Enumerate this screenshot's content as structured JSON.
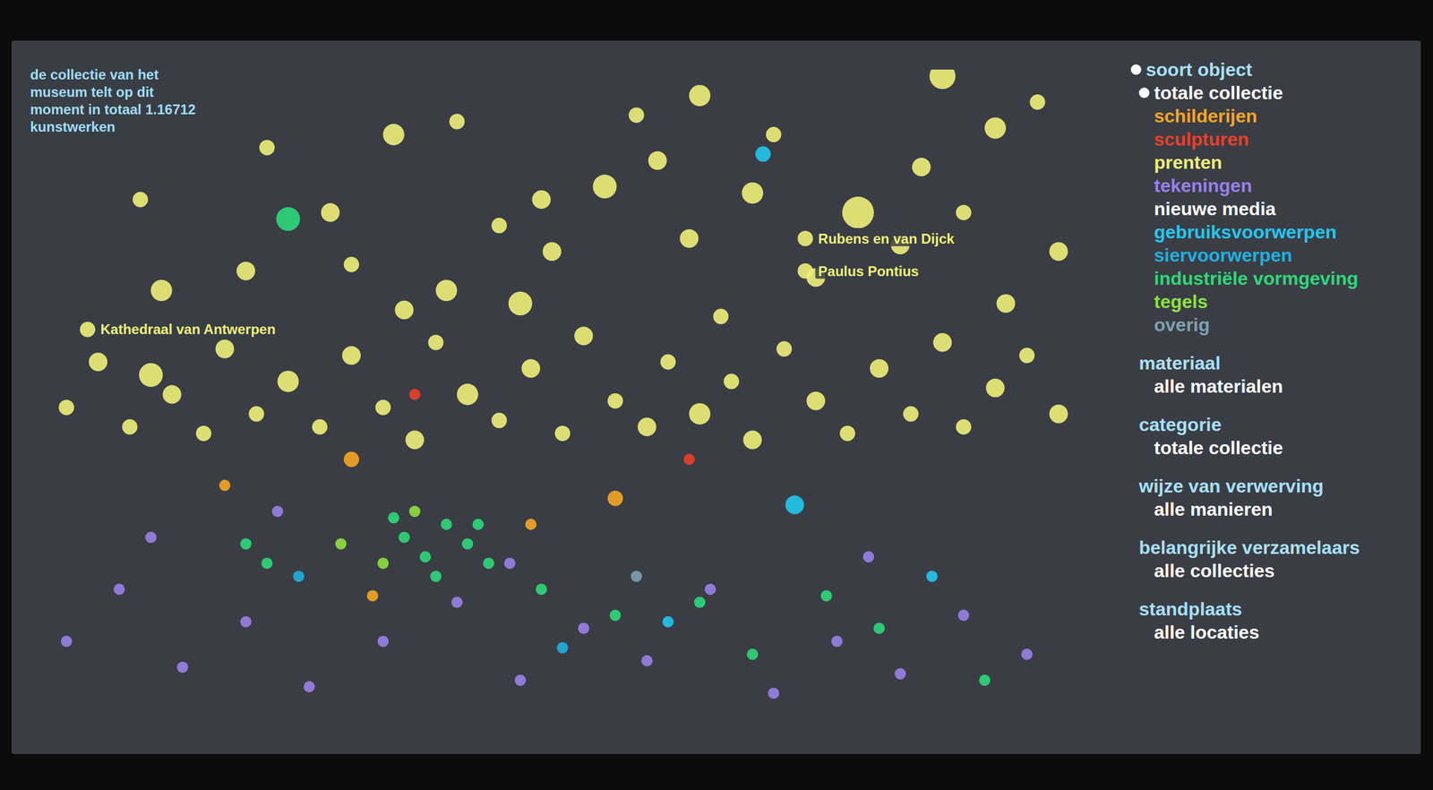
{
  "chart_data": {
    "type": "scatter",
    "annotations": [
      "de collectie van het museum telt op dit moment in totaal 1.16712 kunstwerken"
    ],
    "xlim": [
      0,
      100
    ],
    "ylim": [
      0,
      100
    ],
    "tick_labels": false,
    "grid": false,
    "legend": "right",
    "legend_title": "soort object",
    "size_range": [
      0,
      10
    ],
    "series": [
      {
        "name": "totale collectie",
        "color": "#ffffff",
        "values": []
      },
      {
        "name": "schilderijen",
        "color": "#f5a623",
        "values": [
          {
            "x": 30,
            "y": 40,
            "size": 2
          },
          {
            "x": 55,
            "y": 34,
            "size": 2
          },
          {
            "x": 32,
            "y": 19,
            "size": 1
          },
          {
            "x": 47,
            "y": 30,
            "size": 1
          },
          {
            "x": 18,
            "y": 36,
            "size": 1
          }
        ]
      },
      {
        "name": "sculpturen",
        "color": "#e8402a",
        "values": [
          {
            "x": 36,
            "y": 50,
            "size": 1
          },
          {
            "x": 62,
            "y": 40,
            "size": 1
          }
        ]
      },
      {
        "name": "prenten",
        "color": "#eef07a",
        "values": [
          {
            "x": 86,
            "y": 99,
            "size": 6
          },
          {
            "x": 78,
            "y": 78,
            "size": 9
          },
          {
            "x": 54,
            "y": 82,
            "size": 5
          },
          {
            "x": 46,
            "y": 64,
            "size": 5
          },
          {
            "x": 34,
            "y": 90,
            "size": 4
          },
          {
            "x": 63,
            "y": 96,
            "size": 4
          },
          {
            "x": 11,
            "y": 53,
            "size": 5
          },
          {
            "x": 12,
            "y": 66,
            "size": 4
          },
          {
            "x": 39,
            "y": 66,
            "size": 4
          },
          {
            "x": 68,
            "y": 81,
            "size": 4
          },
          {
            "x": 91,
            "y": 91,
            "size": 4
          },
          {
            "x": 59,
            "y": 86,
            "size": 3
          },
          {
            "x": 49,
            "y": 72,
            "size": 3
          },
          {
            "x": 28,
            "y": 78,
            "size": 3
          },
          {
            "x": 20,
            "y": 69,
            "size": 3
          },
          {
            "x": 82,
            "y": 73,
            "size": 3
          },
          {
            "x": 97,
            "y": 72,
            "size": 3
          },
          {
            "x": 74,
            "y": 68,
            "size": 3
          },
          {
            "x": 3,
            "y": 48,
            "size": 2
          },
          {
            "x": 6,
            "y": 55,
            "size": 3
          },
          {
            "x": 9,
            "y": 45,
            "size": 2
          },
          {
            "x": 13,
            "y": 50,
            "size": 3
          },
          {
            "x": 16,
            "y": 44,
            "size": 2
          },
          {
            "x": 18,
            "y": 57,
            "size": 3
          },
          {
            "x": 21,
            "y": 47,
            "size": 2
          },
          {
            "x": 24,
            "y": 52,
            "size": 4
          },
          {
            "x": 27,
            "y": 45,
            "size": 2
          },
          {
            "x": 30,
            "y": 56,
            "size": 3
          },
          {
            "x": 33,
            "y": 48,
            "size": 2
          },
          {
            "x": 36,
            "y": 43,
            "size": 3
          },
          {
            "x": 38,
            "y": 58,
            "size": 2
          },
          {
            "x": 41,
            "y": 50,
            "size": 4
          },
          {
            "x": 44,
            "y": 46,
            "size": 2
          },
          {
            "x": 47,
            "y": 54,
            "size": 3
          },
          {
            "x": 50,
            "y": 44,
            "size": 2
          },
          {
            "x": 52,
            "y": 59,
            "size": 3
          },
          {
            "x": 55,
            "y": 49,
            "size": 2
          },
          {
            "x": 58,
            "y": 45,
            "size": 3
          },
          {
            "x": 60,
            "y": 55,
            "size": 2
          },
          {
            "x": 63,
            "y": 47,
            "size": 4
          },
          {
            "x": 66,
            "y": 52,
            "size": 2
          },
          {
            "x": 68,
            "y": 43,
            "size": 3
          },
          {
            "x": 71,
            "y": 57,
            "size": 2
          },
          {
            "x": 74,
            "y": 49,
            "size": 3
          },
          {
            "x": 77,
            "y": 44,
            "size": 2
          },
          {
            "x": 80,
            "y": 54,
            "size": 3
          },
          {
            "x": 83,
            "y": 47,
            "size": 2
          },
          {
            "x": 86,
            "y": 58,
            "size": 3
          },
          {
            "x": 88,
            "y": 45,
            "size": 2
          },
          {
            "x": 91,
            "y": 51,
            "size": 3
          },
          {
            "x": 94,
            "y": 56,
            "size": 2
          },
          {
            "x": 97,
            "y": 47,
            "size": 3
          },
          {
            "x": 35,
            "y": 63,
            "size": 3
          },
          {
            "x": 65,
            "y": 62,
            "size": 2
          },
          {
            "x": 92,
            "y": 64,
            "size": 3
          },
          {
            "x": 10,
            "y": 80,
            "size": 2
          },
          {
            "x": 22,
            "y": 88,
            "size": 2
          },
          {
            "x": 40,
            "y": 92,
            "size": 2
          },
          {
            "x": 48,
            "y": 80,
            "size": 3
          },
          {
            "x": 57,
            "y": 93,
            "size": 2
          },
          {
            "x": 70,
            "y": 90,
            "size": 2
          },
          {
            "x": 84,
            "y": 85,
            "size": 3
          },
          {
            "x": 95,
            "y": 95,
            "size": 2
          },
          {
            "x": 30,
            "y": 70,
            "size": 2
          },
          {
            "x": 62,
            "y": 74,
            "size": 3
          },
          {
            "x": 44,
            "y": 76,
            "size": 2
          },
          {
            "x": 88,
            "y": 78,
            "size": 2
          },
          {
            "x": 5,
            "y": 60,
            "size": 2,
            "label": "Kathedraal van Antwerpen"
          },
          {
            "x": 73,
            "y": 74,
            "size": 2,
            "label": "Rubens en van Dijck"
          },
          {
            "x": 73,
            "y": 69,
            "size": 2,
            "label": "Paulus Pontius"
          }
        ]
      },
      {
        "name": "tekeningen",
        "color": "#9b7fe8",
        "values": [
          {
            "x": 3,
            "y": 12,
            "size": 1
          },
          {
            "x": 8,
            "y": 20,
            "size": 1
          },
          {
            "x": 14,
            "y": 8,
            "size": 1
          },
          {
            "x": 20,
            "y": 15,
            "size": 1
          },
          {
            "x": 26,
            "y": 5,
            "size": 1
          },
          {
            "x": 33,
            "y": 12,
            "size": 1
          },
          {
            "x": 40,
            "y": 18,
            "size": 1
          },
          {
            "x": 46,
            "y": 6,
            "size": 1
          },
          {
            "x": 52,
            "y": 14,
            "size": 1
          },
          {
            "x": 58,
            "y": 9,
            "size": 1
          },
          {
            "x": 64,
            "y": 20,
            "size": 1
          },
          {
            "x": 70,
            "y": 4,
            "size": 1
          },
          {
            "x": 76,
            "y": 12,
            "size": 1
          },
          {
            "x": 82,
            "y": 7,
            "size": 1
          },
          {
            "x": 88,
            "y": 16,
            "size": 1
          },
          {
            "x": 94,
            "y": 10,
            "size": 1
          },
          {
            "x": 11,
            "y": 28,
            "size": 1
          },
          {
            "x": 45,
            "y": 24,
            "size": 1
          },
          {
            "x": 79,
            "y": 25,
            "size": 1
          },
          {
            "x": 23,
            "y": 32,
            "size": 1
          }
        ]
      },
      {
        "name": "nieuwe media",
        "color": "#ffffff",
        "values": []
      },
      {
        "name": "gebruiksvoorwerpen",
        "color": "#22c8f0",
        "values": [
          {
            "x": 72,
            "y": 33,
            "size": 3
          },
          {
            "x": 69,
            "y": 87,
            "size": 2
          },
          {
            "x": 60,
            "y": 15,
            "size": 1
          },
          {
            "x": 85,
            "y": 22,
            "size": 1
          }
        ]
      },
      {
        "name": "siervoorwerpen",
        "color": "#1fb0e0",
        "values": [
          {
            "x": 50,
            "y": 11,
            "size": 1
          },
          {
            "x": 25,
            "y": 22,
            "size": 1
          }
        ]
      },
      {
        "name": "industriële vormgeving",
        "color": "#2ed87a",
        "values": [
          {
            "x": 24,
            "y": 77,
            "size": 5
          },
          {
            "x": 35,
            "y": 28,
            "size": 1
          },
          {
            "x": 37,
            "y": 25,
            "size": 1
          },
          {
            "x": 39,
            "y": 30,
            "size": 1
          },
          {
            "x": 41,
            "y": 27,
            "size": 1
          },
          {
            "x": 43,
            "y": 24,
            "size": 1
          },
          {
            "x": 34,
            "y": 31,
            "size": 1
          },
          {
            "x": 38,
            "y": 22,
            "size": 1
          },
          {
            "x": 42,
            "y": 30,
            "size": 1
          },
          {
            "x": 20,
            "y": 27,
            "size": 1
          },
          {
            "x": 22,
            "y": 24,
            "size": 1
          },
          {
            "x": 48,
            "y": 20,
            "size": 1
          },
          {
            "x": 55,
            "y": 16,
            "size": 1
          },
          {
            "x": 63,
            "y": 18,
            "size": 1
          },
          {
            "x": 68,
            "y": 10,
            "size": 1
          },
          {
            "x": 75,
            "y": 19,
            "size": 1
          },
          {
            "x": 80,
            "y": 14,
            "size": 1
          },
          {
            "x": 90,
            "y": 6,
            "size": 1
          }
        ]
      },
      {
        "name": "tegels",
        "color": "#8fe040",
        "values": [
          {
            "x": 29,
            "y": 27,
            "size": 1
          },
          {
            "x": 33,
            "y": 24,
            "size": 1
          },
          {
            "x": 36,
            "y": 32,
            "size": 1
          }
        ]
      },
      {
        "name": "overig",
        "color": "#7fa0b4",
        "values": [
          {
            "x": 57,
            "y": 22,
            "size": 1
          }
        ]
      }
    ]
  },
  "filters": [
    {
      "label": "materiaal",
      "value": "alle materialen"
    },
    {
      "label": "categorie",
      "value": "totale collectie"
    },
    {
      "label": "wijze van verwerving",
      "value": "alle manieren"
    },
    {
      "label": "belangrijke verzamelaars",
      "value": "alle collecties"
    },
    {
      "label": "standplaats",
      "value": "alle locaties"
    }
  ]
}
